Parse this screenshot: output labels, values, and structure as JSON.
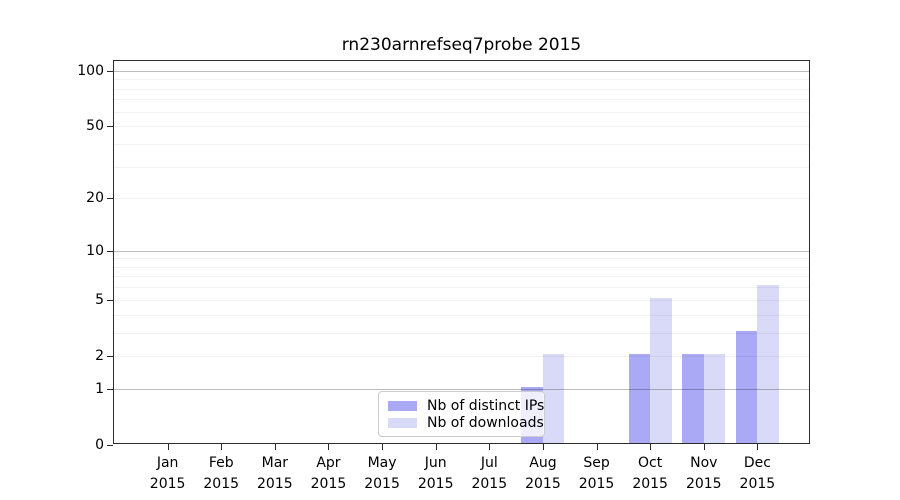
{
  "chart_data": {
    "type": "bar",
    "title": "rn230arnrefseq7probe 2015",
    "categories": [
      "Jan",
      "Feb",
      "Mar",
      "Apr",
      "May",
      "Jun",
      "Jul",
      "Aug",
      "Sep",
      "Oct",
      "Nov",
      "Dec"
    ],
    "category_year": "2015",
    "series": [
      {
        "name": "Nb of distinct IPs",
        "color": "#a9a9f5",
        "values": [
          0,
          0,
          0,
          0,
          0,
          0,
          0,
          1,
          0,
          2,
          2,
          3
        ]
      },
      {
        "name": "Nb of downloads",
        "color": "#d9d9f8",
        "values": [
          0,
          0,
          0,
          0,
          0,
          0,
          0,
          2,
          0,
          5,
          2,
          6
        ]
      }
    ],
    "xlabel": "",
    "ylabel": "",
    "yscale": "log1p",
    "ylim": [
      0,
      113
    ],
    "ytick_labels": [
      0,
      1,
      2,
      5,
      10,
      20,
      50,
      100
    ],
    "major_gridlines": [
      1,
      10,
      100
    ],
    "minor_gridlines": [
      2,
      3,
      4,
      5,
      6,
      7,
      8,
      9,
      20,
      30,
      40,
      50,
      60,
      70,
      80,
      90
    ],
    "grid": true,
    "legend_position": "lower center (inside plot)",
    "colors": {
      "distinct_ips_bar": "#a9a9f5",
      "downloads_bar": "#d9d9f8",
      "major_grid": "#bdbdbd",
      "minor_grid": "#f1f1f1",
      "spine": "#2b2b2b",
      "background": "#ffffff"
    }
  }
}
